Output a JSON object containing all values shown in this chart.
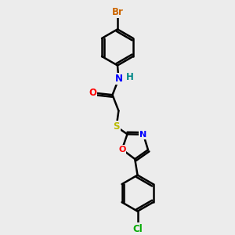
{
  "background_color": "#ececec",
  "bond_color": "#000000",
  "bond_width": 1.8,
  "atom_colors": {
    "Br": "#cc6600",
    "N": "#0000ff",
    "H": "#008888",
    "O": "#ff0000",
    "S": "#bbbb00",
    "C": "#000000",
    "Cl": "#00aa00"
  },
  "font_size": 8.5,
  "fig_width": 3.0,
  "fig_height": 3.0,
  "dpi": 100
}
